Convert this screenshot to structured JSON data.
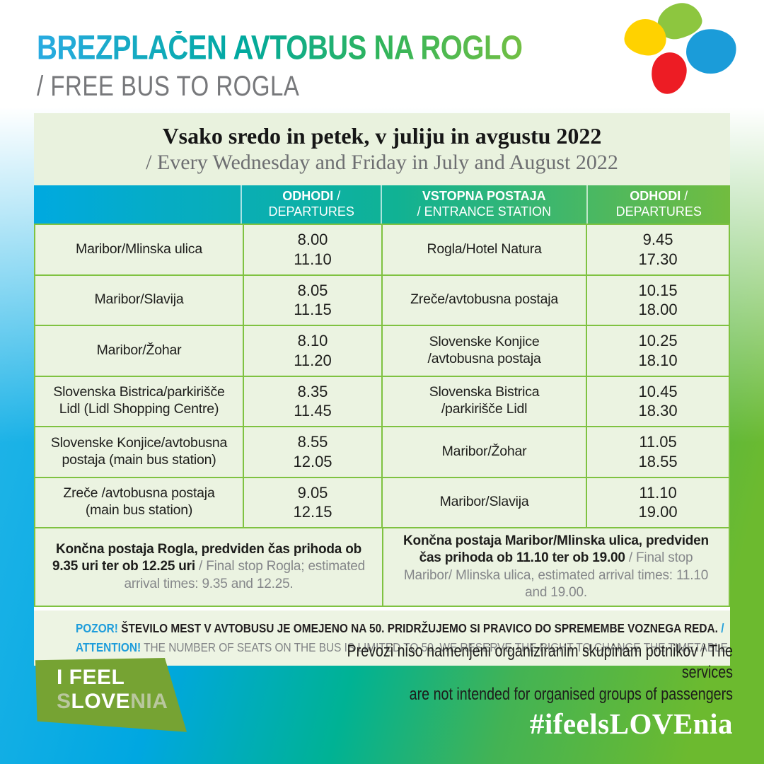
{
  "header": {
    "title": "BREZPLAČEN AVTOBUS NA ROGLO",
    "subtitle": "/ FREE BUS TO ROGLA"
  },
  "logo": {
    "blobs": [
      "green-blob",
      "yellow-blob",
      "blue-blob",
      "red-blob"
    ]
  },
  "schedule": {
    "period_sl": "Vsako sredo in petek, v juliju in avgustu 2022",
    "period_en": "/ Every Wednesday and Friday in July and August 2022",
    "columns": {
      "dep1_bold": "ODHODI",
      "dep1_rest": " / DEPARTURES",
      "entrance_line1": "VSTOPNA POSTAJA",
      "entrance_line2": "/ ENTRANCE STATION",
      "dep2_bold": "ODHODI",
      "dep2_rest": " / DEPARTURES"
    },
    "rows": [
      {
        "station_left": [
          "Maribor/Mlinska ulica"
        ],
        "dep_left": [
          "8.00",
          "11.10"
        ],
        "station_right": [
          "Rogla/Hotel Natura"
        ],
        "dep_right": [
          "9.45",
          "17.30"
        ]
      },
      {
        "station_left": [
          "Maribor/Slavija"
        ],
        "dep_left": [
          "8.05",
          "11.15"
        ],
        "station_right": [
          "Zreče/avtobusna postaja"
        ],
        "dep_right": [
          "10.15",
          "18.00"
        ]
      },
      {
        "station_left": [
          "Maribor/Žohar"
        ],
        "dep_left": [
          "8.10",
          "11.20"
        ],
        "station_right": [
          "Slovenske Konjice",
          "/avtobusna postaja"
        ],
        "dep_right": [
          "10.25",
          "18.10"
        ]
      },
      {
        "station_left": [
          "Slovenska Bistrica/parkirišče",
          "Lidl (Lidl Shopping Centre)"
        ],
        "dep_left": [
          "8.35",
          "11.45"
        ],
        "station_right": [
          "Slovenska Bistrica",
          "/parkirišče Lidl"
        ],
        "dep_right": [
          "10.45",
          "18.30"
        ]
      },
      {
        "station_left": [
          "Slovenske Konjice/avtobusna",
          "postaja (main bus station)"
        ],
        "dep_left": [
          "8.55",
          "12.05"
        ],
        "station_right": [
          "Maribor/Žohar"
        ],
        "dep_right": [
          "11.05",
          "18.55"
        ]
      },
      {
        "station_left": [
          "Zreče /avtobusna postaja",
          "(main bus station)"
        ],
        "dep_left": [
          "9.05",
          "12.15"
        ],
        "station_right": [
          "Maribor/Slavija"
        ],
        "dep_right": [
          "11.10",
          "19.00"
        ]
      }
    ],
    "final_left": {
      "bold": "Končna postaja Rogla, predviden čas prihoda ob 9.35 uri ter ob 12.25 uri",
      "gray": " / Final stop Rogla; estimated arrival times: 9.35 and 12.25."
    },
    "final_right": {
      "bold": "Končna postaja Maribor/Mlinska ulica, predviden čas prihoda ob 11.10 ter ob 19.00",
      "gray": " / Final stop Maribor/ Mlinska ulica, estimated arrival times: 11.10 and 19.00."
    }
  },
  "attention": {
    "sl_label": "POZOR!",
    "sl_text": " ŠTEVILO MEST V AVTOBUSU JE OMEJENO NA 50. PRIDRŽUJEMO SI PRAVICO DO SPREMEMBE VOZNEGA REDA. ",
    "sl_slash": "/",
    "en_label": "ATTENTION!",
    "en_text": " THE NUMBER OF SEATS ON THE BUS IS LIMITED TO 50. WE RESERVE THE RIGHT TO CHANGE THE TIMETABLE."
  },
  "footer": {
    "note_line1": "Prevozi niso namenjeni organiziranim skupinam potnikov / The services",
    "note_line2": "are not intended for organised groups of passengers",
    "brand": {
      "line1": "I FEEL",
      "s": "S",
      "love": "LOVE",
      "nia": "NIA"
    },
    "hashtag": "#ifeelsLOVEnia"
  },
  "colors": {
    "accent_blue": "#29abe2",
    "accent_green": "#72bf44",
    "table_border_green": "#7fc241",
    "cell_background": "#ebf3e1",
    "brand_olive": "#76a333"
  }
}
